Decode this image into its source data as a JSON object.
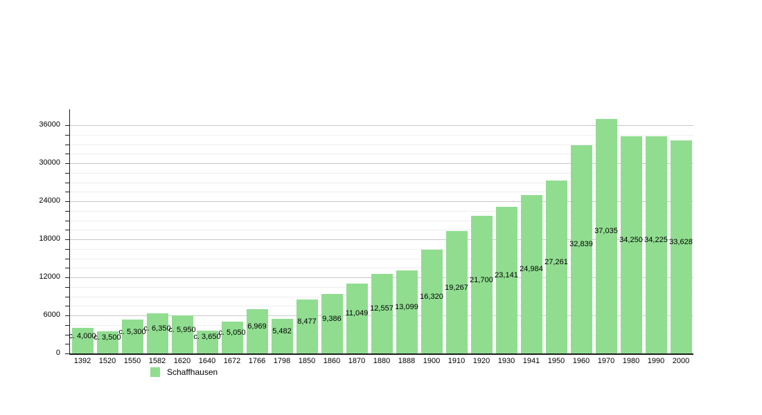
{
  "chart_data": {
    "type": "bar",
    "title": "",
    "xlabel": "",
    "ylabel": "",
    "categories": [
      "1392",
      "1520",
      "1550",
      "1582",
      "1620",
      "1640",
      "1672",
      "1766",
      "1798",
      "1850",
      "1860",
      "1870",
      "1880",
      "1888",
      "1900",
      "1910",
      "1920",
      "1930",
      "1941",
      "1950",
      "1960",
      "1970",
      "1980",
      "1990",
      "2000"
    ],
    "values": [
      4000,
      3500,
      5300,
      6350,
      5950,
      3650,
      5050,
      6969,
      5482,
      8477,
      9386,
      11049,
      12557,
      13099,
      16320,
      19267,
      21700,
      23141,
      24984,
      27261,
      32839,
      37035,
      34250,
      34225,
      33628
    ],
    "value_labels": [
      "c. 4,000",
      "c. 3,500",
      "c. 5,300",
      "c. 6,350",
      "c. 5,950",
      "c. 3,650",
      "c. 5,050",
      "6,969",
      "5,482",
      "8,477",
      "9,386",
      "11,049",
      "12,557",
      "13,099",
      "16,320",
      "19,267",
      "21,700",
      "23,141",
      "24,984",
      "27,261",
      "32,839",
      "37,035",
      "34,250",
      "34,225",
      "33,628"
    ],
    "legend": [
      {
        "label": "Schaffhausen",
        "color": "#90dd90"
      }
    ],
    "legend_position": "bottom-left",
    "grid": true,
    "ylim": [
      0,
      38500
    ],
    "y_major_ticks": [
      0,
      6000,
      12000,
      18000,
      24000,
      30000,
      36000
    ],
    "y_minor_step": 1500,
    "colors": {
      "bar_fill": "#90dd90",
      "axis": "#1a1a1a",
      "grid_major": "#c8c8c8",
      "grid_minor": "#ededed",
      "text": "#000000",
      "background": "#ffffff"
    }
  }
}
